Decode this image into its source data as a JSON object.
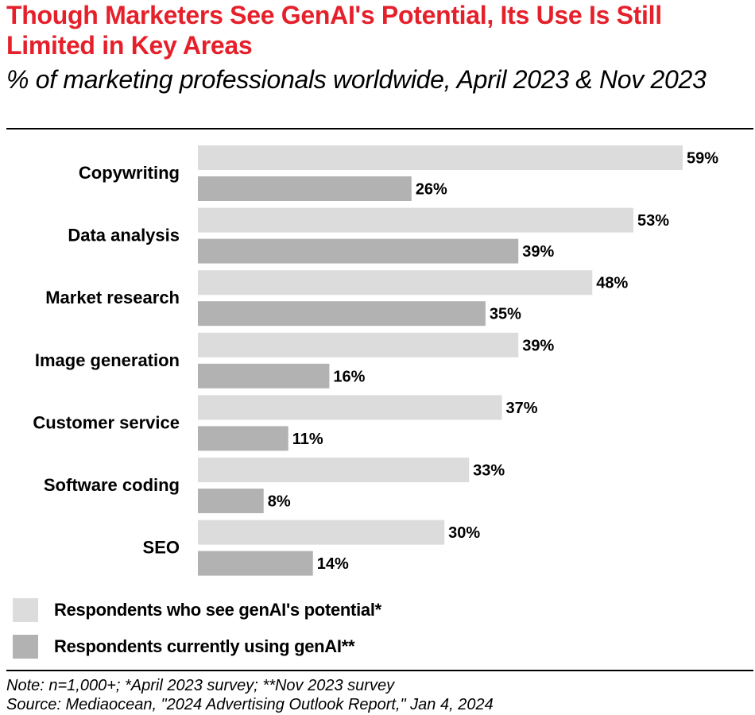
{
  "header": {
    "title": "Though Marketers See GenAI's Potential, Its Use Is Still Limited in Key Areas",
    "subtitle": "% of marketing professionals worldwide, April 2023 & Nov 2023"
  },
  "chart_data": {
    "type": "bar",
    "orientation": "horizontal",
    "categories": [
      "Copywriting",
      "Data analysis",
      "Market research",
      "Image generation",
      "Customer service",
      "Software coding",
      "SEO"
    ],
    "series": [
      {
        "name": "Respondents who see genAI's potential*",
        "values": [
          59,
          53,
          48,
          39,
          37,
          33,
          30
        ],
        "color": "#dcdcdc"
      },
      {
        "name": "Respondents currently using genAI**",
        "values": [
          26,
          39,
          35,
          16,
          11,
          8,
          14
        ],
        "color": "#b2b2b2"
      }
    ],
    "value_suffix": "%",
    "xlim": [
      0,
      59
    ],
    "grid": false,
    "legend_position": "bottom-left"
  },
  "footer": {
    "note": "Note: n=1,000+; *April 2023 survey; **Nov 2023 survey",
    "source": "Source: Mediaocean, \"2024 Advertising Outlook Report,\" Jan 4, 2024"
  }
}
